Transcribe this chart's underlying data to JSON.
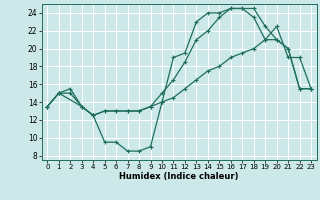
{
  "xlabel": "Humidex (Indice chaleur)",
  "bg_color": "#cce8e8",
  "grid_color": "#ffffff",
  "line_color": "#1e6e5e",
  "xlim": [
    -0.5,
    23.5
  ],
  "ylim": [
    7.5,
    25.0
  ],
  "xticks": [
    0,
    1,
    2,
    3,
    4,
    5,
    6,
    7,
    8,
    9,
    10,
    11,
    12,
    13,
    14,
    15,
    16,
    17,
    18,
    19,
    20,
    21,
    22,
    23
  ],
  "yticks": [
    8,
    10,
    12,
    14,
    16,
    18,
    20,
    22,
    24
  ],
  "curve1_x": [
    0,
    1,
    3,
    4,
    5,
    6,
    7,
    8,
    9,
    10,
    11,
    12,
    13,
    14,
    15,
    16,
    17,
    18,
    19,
    20,
    21,
    22,
    23
  ],
  "curve1_y": [
    13.5,
    15.0,
    13.5,
    12.5,
    9.5,
    9.5,
    8.5,
    8.5,
    9.0,
    14.0,
    19.0,
    19.5,
    23.0,
    24.0,
    24.0,
    24.5,
    24.5,
    23.5,
    21.0,
    22.5,
    19.0,
    19.0,
    15.5
  ],
  "curve2_x": [
    0,
    1,
    2,
    3,
    4,
    5,
    6,
    7,
    8,
    9,
    10,
    11,
    12,
    13,
    14,
    15,
    16,
    17,
    18,
    19,
    20,
    21,
    22,
    23
  ],
  "curve2_y": [
    13.5,
    15.0,
    15.0,
    13.5,
    12.5,
    13.0,
    13.0,
    13.0,
    13.0,
    13.5,
    14.0,
    14.5,
    15.5,
    16.5,
    17.5,
    18.0,
    19.0,
    19.5,
    20.0,
    21.0,
    21.0,
    20.0,
    15.5,
    15.5
  ],
  "curve3_x": [
    0,
    1,
    2,
    3,
    4,
    5,
    6,
    7,
    8,
    9,
    10,
    11,
    12,
    13,
    14,
    15,
    16,
    17,
    18,
    19,
    20,
    21,
    22,
    23
  ],
  "curve3_y": [
    13.5,
    15.0,
    15.5,
    13.5,
    12.5,
    13.0,
    13.0,
    13.0,
    13.0,
    13.5,
    15.0,
    16.5,
    18.5,
    21.0,
    22.0,
    23.5,
    24.5,
    24.5,
    24.5,
    22.5,
    21.0,
    20.0,
    15.5,
    15.5
  ]
}
